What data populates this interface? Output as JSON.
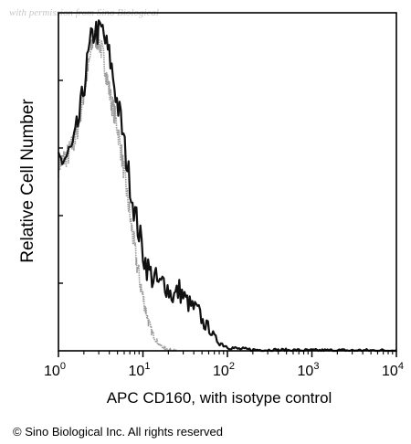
{
  "watermark_text": "with permission from Sino Biological",
  "copyright": "© Sino Biological Inc. All rights reserved",
  "chart_data": {
    "type": "area",
    "ylabel": "Relative Cell Number",
    "xlabel": "APC CD160, with isotype control",
    "x_scale": "log",
    "xlim": [
      1,
      10000
    ],
    "ylim": [
      0,
      1
    ],
    "x_ticks": [
      {
        "value": 1,
        "base": "10",
        "exp": "0"
      },
      {
        "value": 10,
        "base": "10",
        "exp": "1"
      },
      {
        "value": 100,
        "base": "10",
        "exp": "2"
      },
      {
        "value": 1000,
        "base": "10",
        "exp": "3"
      },
      {
        "value": 10000,
        "base": "10",
        "exp": "4"
      }
    ],
    "series": [
      {
        "role": "isotype-control",
        "color": "#9a9a9a",
        "x": [
          1,
          1.3,
          1.6,
          2,
          2.3,
          2.6,
          3,
          3.4,
          3.8,
          4.2,
          4.6,
          5,
          5.6,
          6.2,
          7,
          7.8,
          8.7,
          10,
          11.5,
          13,
          14.5,
          16,
          19,
          25
        ],
        "y": [
          0.55,
          0.58,
          0.63,
          0.76,
          0.85,
          0.93,
          0.92,
          0.87,
          0.8,
          0.74,
          0.7,
          0.66,
          0.58,
          0.5,
          0.4,
          0.32,
          0.24,
          0.16,
          0.09,
          0.05,
          0.03,
          0.015,
          0.005,
          0
        ]
      },
      {
        "role": "CD160",
        "color": "#111111",
        "x": [
          1,
          1.2,
          1.5,
          1.8,
          2.1,
          2.4,
          2.7,
          3.0,
          3.3,
          3.7,
          4.1,
          4.5,
          5,
          5.5,
          6,
          6.8,
          7.5,
          8.5,
          9.5,
          10.5,
          12,
          14,
          16,
          18,
          20,
          23,
          27,
          32,
          38,
          45,
          52,
          60,
          70,
          80,
          100,
          130,
          200,
          400,
          1000,
          10000
        ],
        "y": [
          0.56,
          0.57,
          0.6,
          0.7,
          0.82,
          0.91,
          0.95,
          0.94,
          0.95,
          0.9,
          0.86,
          0.8,
          0.73,
          0.68,
          0.61,
          0.52,
          0.45,
          0.38,
          0.32,
          0.27,
          0.23,
          0.21,
          0.19,
          0.21,
          0.18,
          0.16,
          0.18,
          0.15,
          0.13,
          0.12,
          0.08,
          0.07,
          0.04,
          0.025,
          0.012,
          0.006,
          0.003,
          0.002,
          0.001,
          0.001
        ]
      }
    ]
  }
}
